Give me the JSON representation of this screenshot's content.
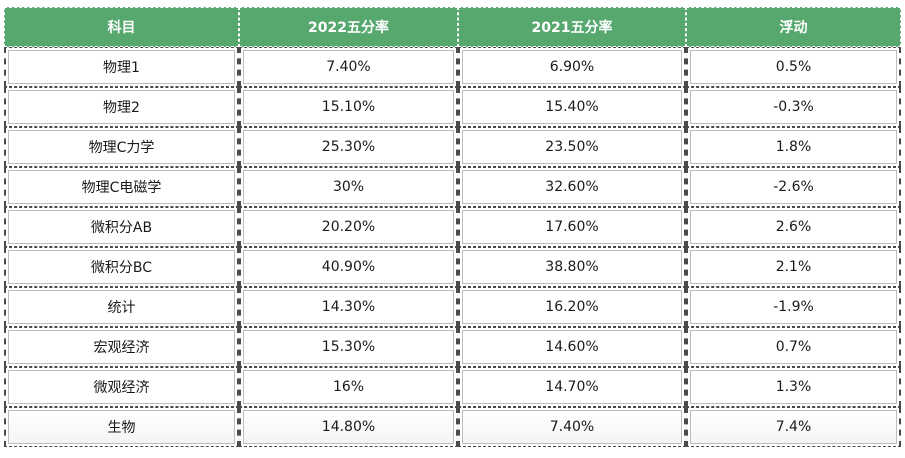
{
  "table": {
    "headers": [
      "科目",
      "2022五分率",
      "2021五分率",
      "浮动"
    ],
    "rows": [
      [
        "物理1",
        "7.40%",
        "6.90%",
        "0.5%"
      ],
      [
        "物理2",
        "15.10%",
        "15.40%",
        "-0.3%"
      ],
      [
        "物理C力学",
        "25.30%",
        "23.50%",
        "1.8%"
      ],
      [
        "物理C电磁学",
        "30%",
        "32.60%",
        "-2.6%"
      ],
      [
        "微积分AB",
        "20.20%",
        "17.60%",
        "2.6%"
      ],
      [
        "微积分BC",
        "40.90%",
        "38.80%",
        "2.1%"
      ],
      [
        "统计",
        "14.30%",
        "16.20%",
        "-1.9%"
      ],
      [
        "宏观经济",
        "15.30%",
        "14.60%",
        "0.7%"
      ],
      [
        "微观经济",
        "16%",
        "14.70%",
        "1.3%"
      ],
      [
        "生物",
        "14.80%",
        "7.40%",
        "7.4%"
      ]
    ],
    "header_color": "#57a86f",
    "header_text_color": "#ffffff"
  }
}
